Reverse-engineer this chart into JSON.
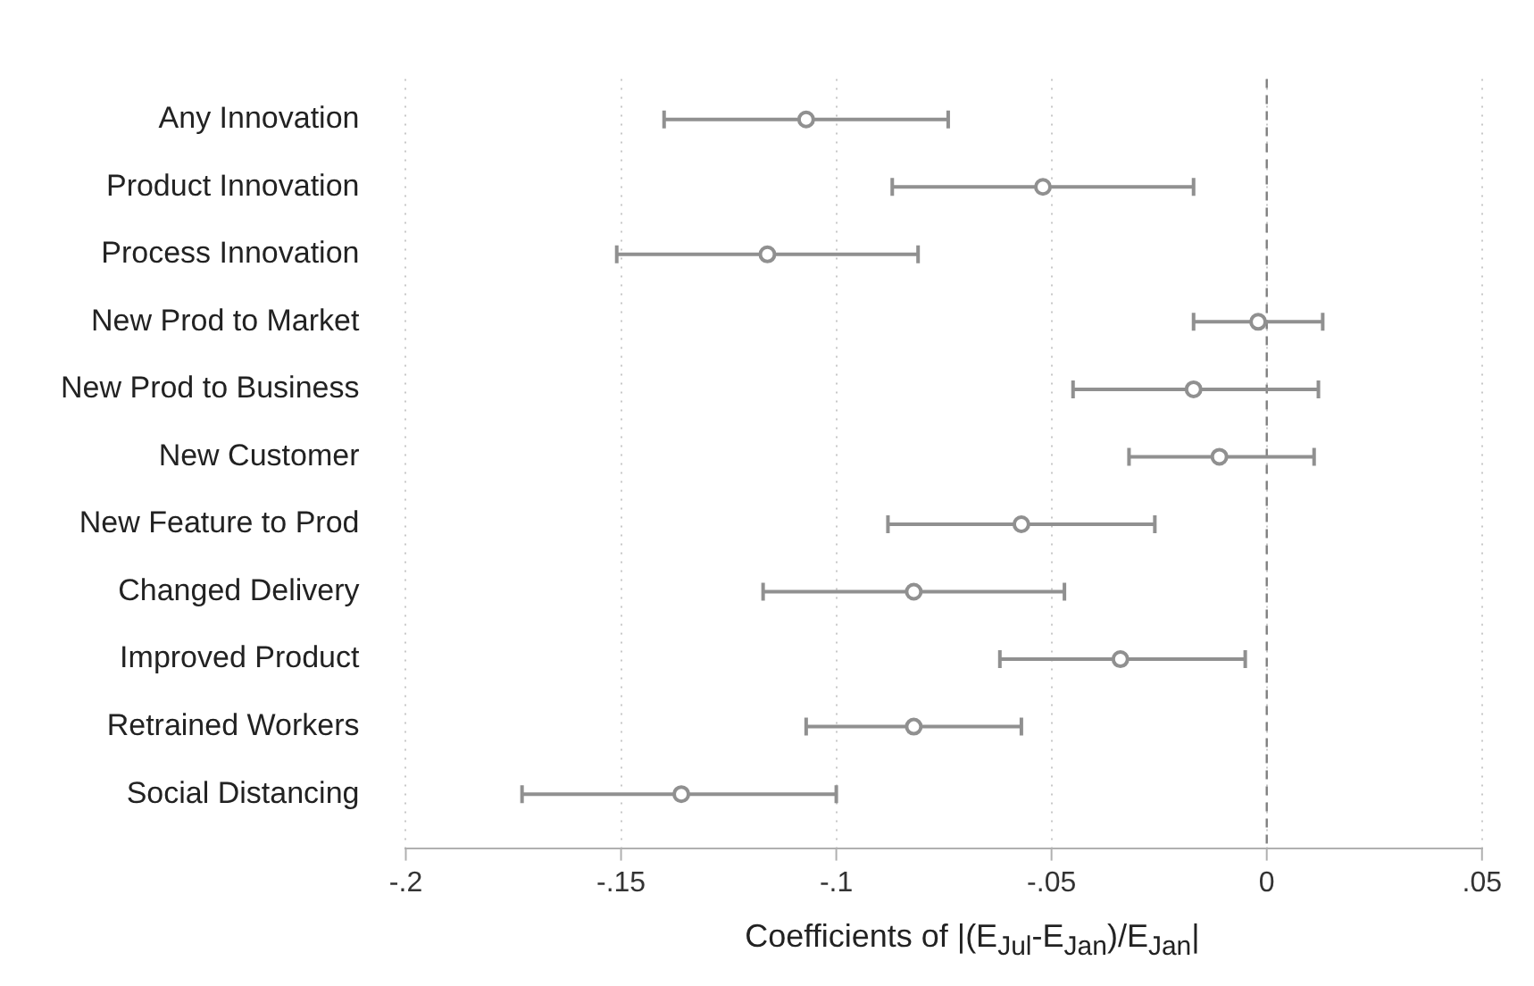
{
  "chart_data": {
    "type": "scatter",
    "orientation": "horizontal",
    "xlabel": "Coefficients of |(E$_{Jul}$-E$_{Jan}$)/E$_{Jan}$|",
    "categories": [
      "Any Innovation",
      "Product Innovation",
      "Process Innovation",
      "New Prod to Market",
      "New Prod to Business",
      "New Customer",
      "New Feature to Prod",
      "Changed Delivery",
      "Improved Product",
      "Retrained Workers",
      "Social Distancing"
    ],
    "values": [
      -0.107,
      -0.052,
      -0.116,
      -0.002,
      -0.017,
      -0.011,
      -0.057,
      -0.082,
      -0.034,
      -0.082,
      -0.136
    ],
    "errors": [
      [
        -0.14,
        -0.074
      ],
      [
        -0.087,
        -0.017
      ],
      [
        -0.151,
        -0.081
      ],
      [
        -0.017,
        0.013
      ],
      [
        -0.045,
        0.012
      ],
      [
        -0.032,
        0.011
      ],
      [
        -0.088,
        -0.026
      ],
      [
        -0.117,
        -0.047
      ],
      [
        -0.062,
        -0.005
      ],
      [
        -0.107,
        -0.057
      ],
      [
        -0.173,
        -0.1
      ]
    ],
    "color": "#909090",
    "marker": "circle",
    "grid": "x",
    "legend": false,
    "xlim": [
      -0.2,
      0.05
    ],
    "xticks": [
      {
        "value": -0.2,
        "label": "-.2"
      },
      {
        "value": -0.15,
        "label": "-.15"
      },
      {
        "value": -0.1,
        "label": "-.1"
      },
      {
        "value": -0.05,
        "label": "-.05"
      },
      0,
      {
        "value": 0.05,
        "label": ".05"
      }
    ],
    "ref_lines": [
      {
        "axis": "x",
        "value": 0,
        "color": "#808080",
        "line_style": "dashed"
      }
    ]
  }
}
